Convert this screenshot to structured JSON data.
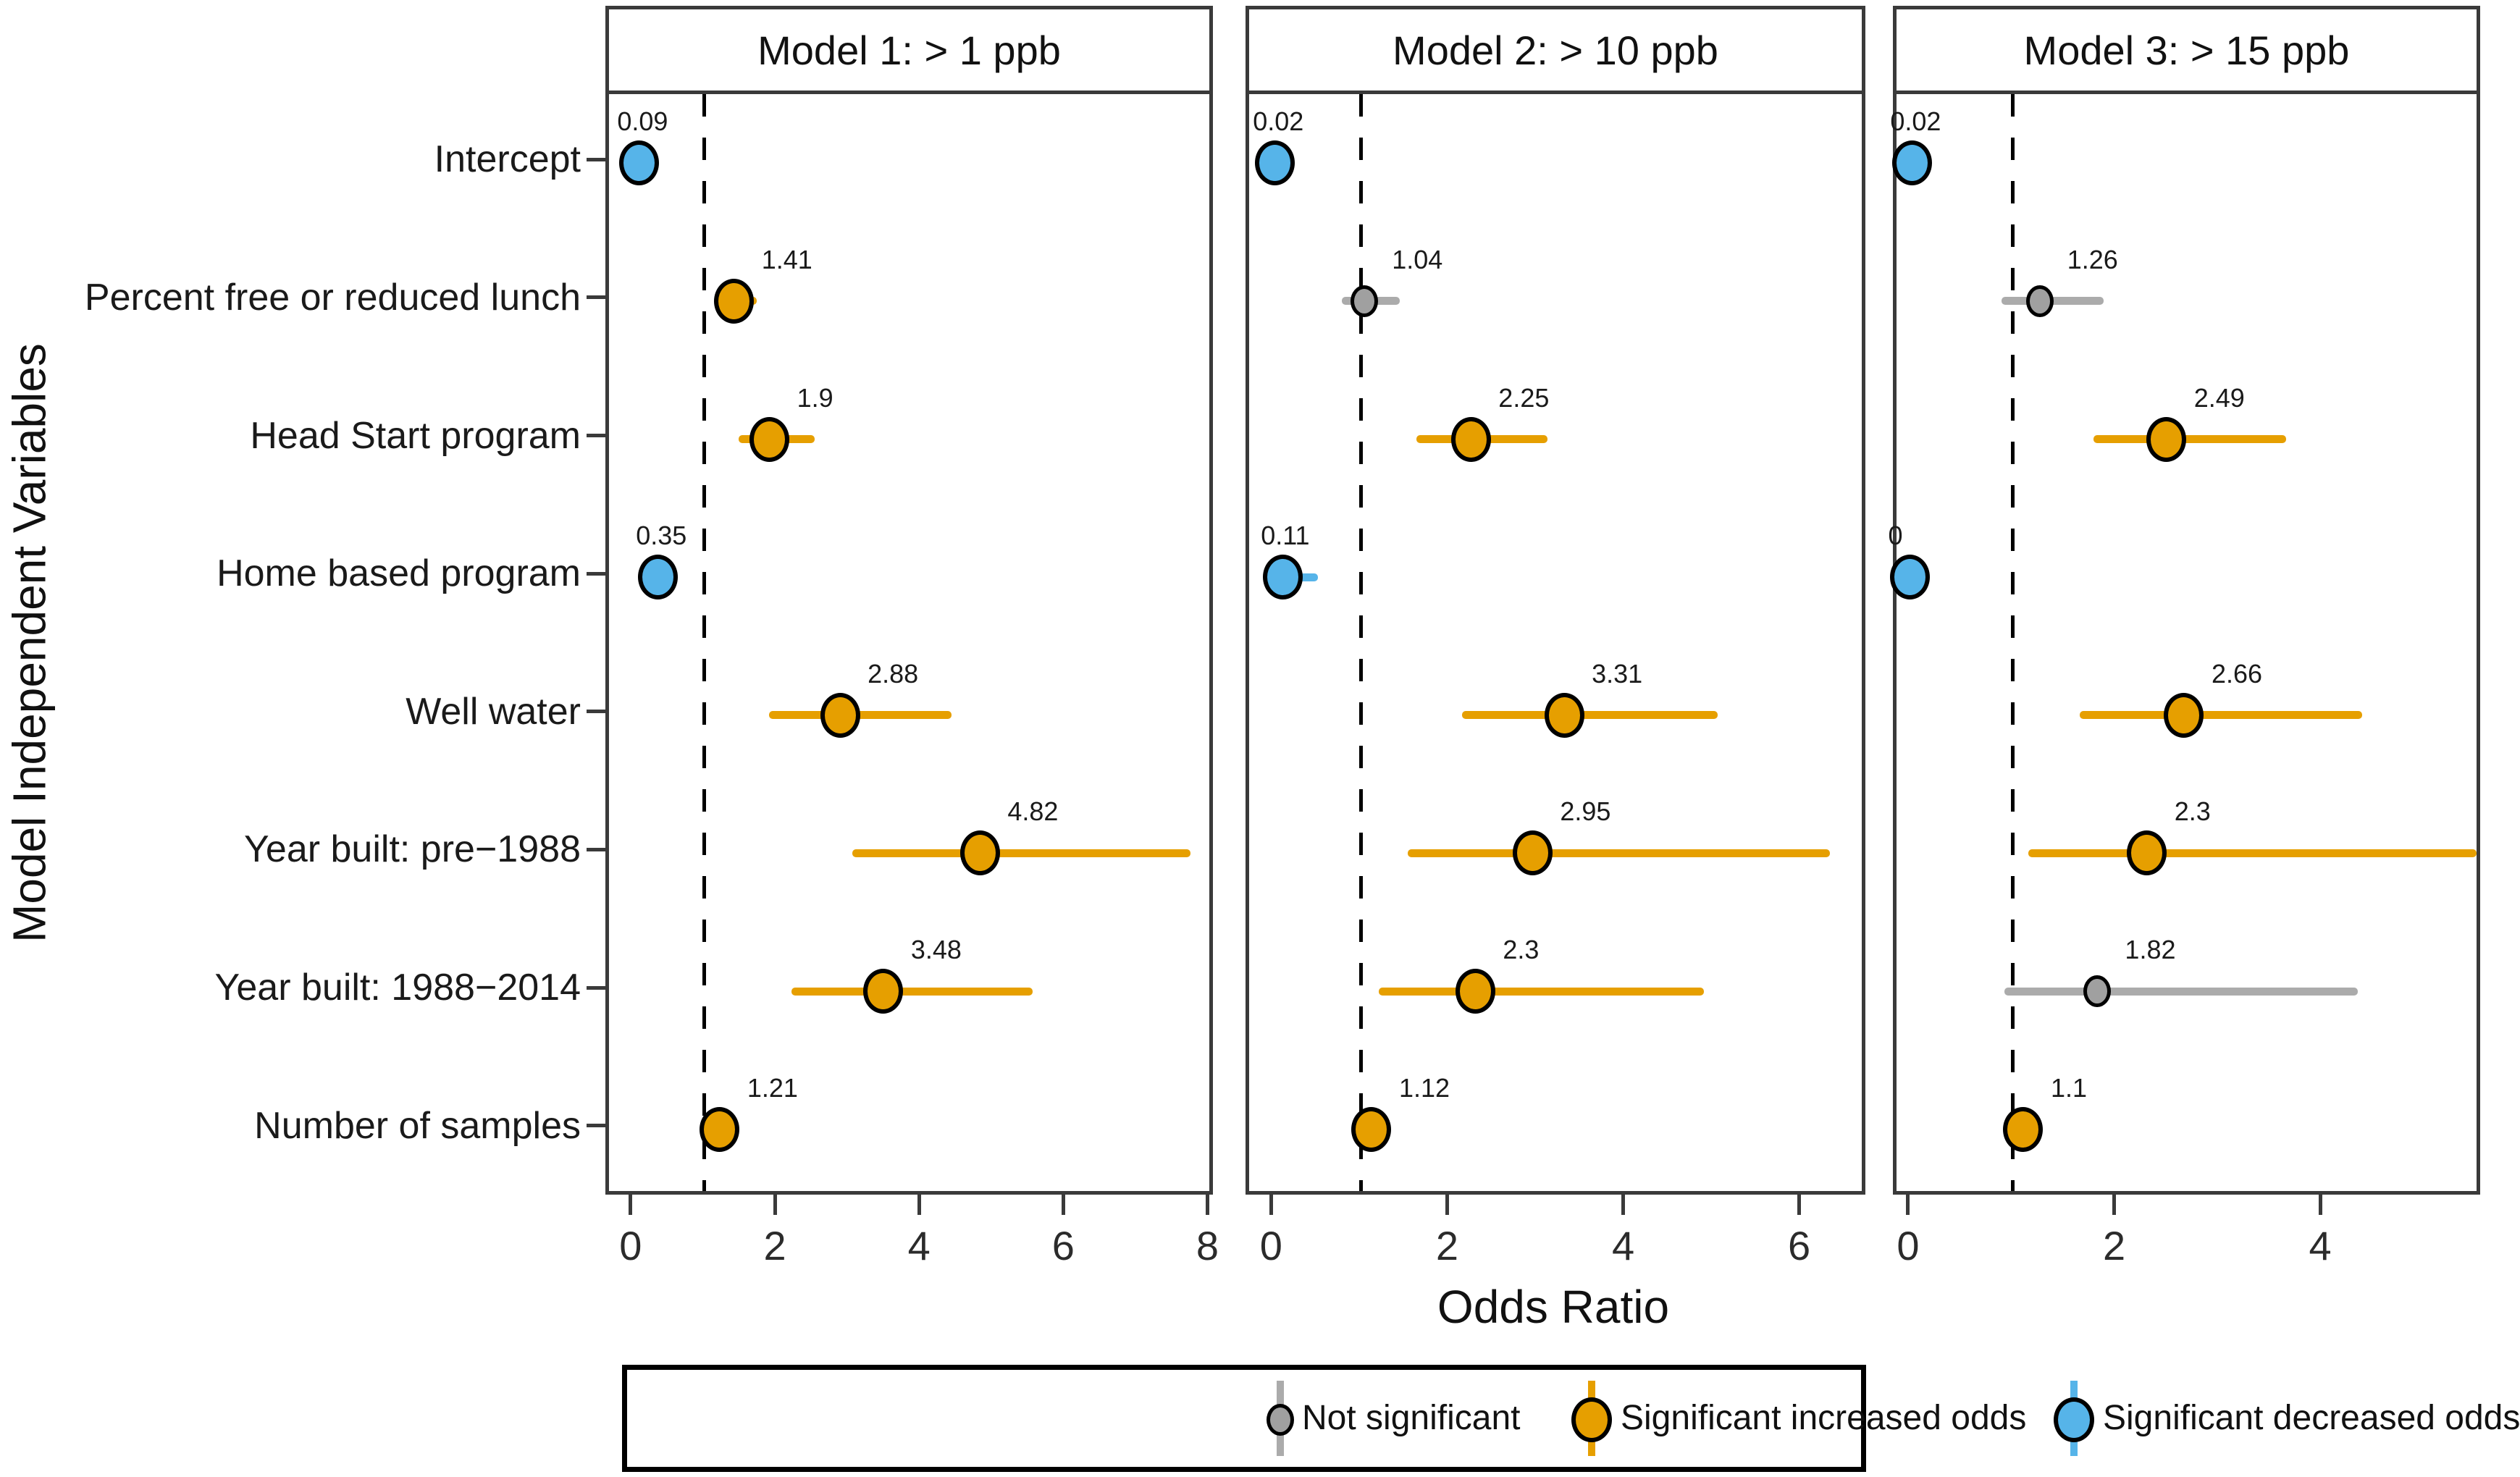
{
  "figure": {
    "y_axis_title": "Model Independent Variables",
    "x_axis_title": "Odds Ratio"
  },
  "colors": {
    "increase": "#E69F00",
    "decrease": "#56B4E9",
    "not_significant_dot": "#A0A0A0",
    "not_significant_line": "#ABABAB",
    "panel_border": "#3A3A3A",
    "reference_line": "#000000"
  },
  "legend": {
    "items": [
      {
        "label": "Not significant",
        "category": "none"
      },
      {
        "label": "Significant increased odds",
        "category": "increase"
      },
      {
        "label": "Significant decreased odds",
        "category": "decrease"
      }
    ]
  },
  "chart_data": {
    "type": "scatter",
    "subtype": "forest-plot-odds-ratio",
    "title": "",
    "xlabel": "Odds Ratio",
    "ylabel": "Model Independent Variables",
    "reference_line_x": 1,
    "y_categories": [
      "Intercept",
      "Percent free or reduced lunch",
      "Head Start program",
      "Home based program",
      "Well water",
      "Year built: pre−1988",
      "Year built: 1988−2014",
      "Number of samples"
    ],
    "panels": [
      {
        "title": "Model 1: > 1 ppb",
        "x_ticks": [
          0,
          2,
          4,
          6,
          8
        ],
        "x_domain": [
          -0.325,
          8.0
        ],
        "points": [
          {
            "row": 0,
            "value": 0.09,
            "label": "0.09",
            "category": "decrease",
            "ci": null
          },
          {
            "row": 1,
            "value": 1.41,
            "label": "1.41",
            "category": "increase",
            "ci": [
              1.15,
              1.72
            ]
          },
          {
            "row": 2,
            "value": 1.9,
            "label": "1.9",
            "category": "increase",
            "ci": [
              1.47,
              2.53
            ]
          },
          {
            "row": 3,
            "value": 0.35,
            "label": "0.35",
            "category": "decrease",
            "ci": null
          },
          {
            "row": 4,
            "value": 2.88,
            "label": "2.88",
            "category": "increase",
            "ci": [
              1.89,
              4.43
            ]
          },
          {
            "row": 5,
            "value": 4.82,
            "label": "4.82",
            "category": "increase",
            "ci": [
              3.05,
              7.74
            ]
          },
          {
            "row": 6,
            "value": 3.48,
            "label": "3.48",
            "category": "increase",
            "ci": [
              2.21,
              5.55
            ]
          },
          {
            "row": 7,
            "value": 1.21,
            "label": "1.21",
            "category": "increase",
            "ci": null
          }
        ]
      },
      {
        "title": "Model 2: > 10 ppb",
        "x_ticks": [
          0,
          2,
          4,
          6
        ],
        "x_domain": [
          -0.27,
          6.69
        ],
        "points": [
          {
            "row": 0,
            "value": 0.02,
            "label": "0.02",
            "category": "decrease",
            "ci": null
          },
          {
            "row": 1,
            "value": 1.04,
            "label": "1.04",
            "category": "none",
            "ci": [
              0.78,
              1.44
            ]
          },
          {
            "row": 2,
            "value": 2.25,
            "label": "2.25",
            "category": "increase",
            "ci": [
              1.63,
              3.12
            ]
          },
          {
            "row": 3,
            "value": 0.11,
            "label": "0.11",
            "category": "decrease",
            "ci": [
              0.11,
              0.51
            ]
          },
          {
            "row": 4,
            "value": 3.31,
            "label": "3.31",
            "category": "increase",
            "ci": [
              2.15,
              5.05
            ]
          },
          {
            "row": 5,
            "value": 2.95,
            "label": "2.95",
            "category": "increase",
            "ci": [
              1.53,
              6.33
            ]
          },
          {
            "row": 6,
            "value": 2.3,
            "label": "2.3",
            "category": "increase",
            "ci": [
              1.2,
              4.9
            ]
          },
          {
            "row": 7,
            "value": 1.12,
            "label": "1.12",
            "category": "increase",
            "ci": null
          }
        ]
      },
      {
        "title": "Model 3: > 15 ppb",
        "x_ticks": [
          0,
          2,
          4
        ],
        "x_domain": [
          -0.13,
          5.5
        ],
        "points": [
          {
            "row": 0,
            "value": 0.02,
            "label": "0.02",
            "category": "decrease",
            "ci": null
          },
          {
            "row": 1,
            "value": 1.26,
            "label": "1.26",
            "category": "none",
            "ci": [
              0.89,
              1.88
            ]
          },
          {
            "row": 2,
            "value": 2.49,
            "label": "2.49",
            "category": "increase",
            "ci": [
              1.78,
              3.65
            ]
          },
          {
            "row": 3,
            "value": 0,
            "label": "0",
            "category": "decrease",
            "ci": null
          },
          {
            "row": 4,
            "value": 2.66,
            "label": "2.66",
            "category": "increase",
            "ci": [
              1.65,
              4.39
            ]
          },
          {
            "row": 5,
            "value": 2.3,
            "label": "2.3",
            "category": "increase",
            "ci": [
              1.15,
              5.5
            ]
          },
          {
            "row": 6,
            "value": 1.82,
            "label": "1.82",
            "category": "none",
            "ci": [
              0.92,
              4.35
            ]
          },
          {
            "row": 7,
            "value": 1.1,
            "label": "1.1",
            "category": "increase",
            "ci": null
          }
        ]
      }
    ]
  }
}
